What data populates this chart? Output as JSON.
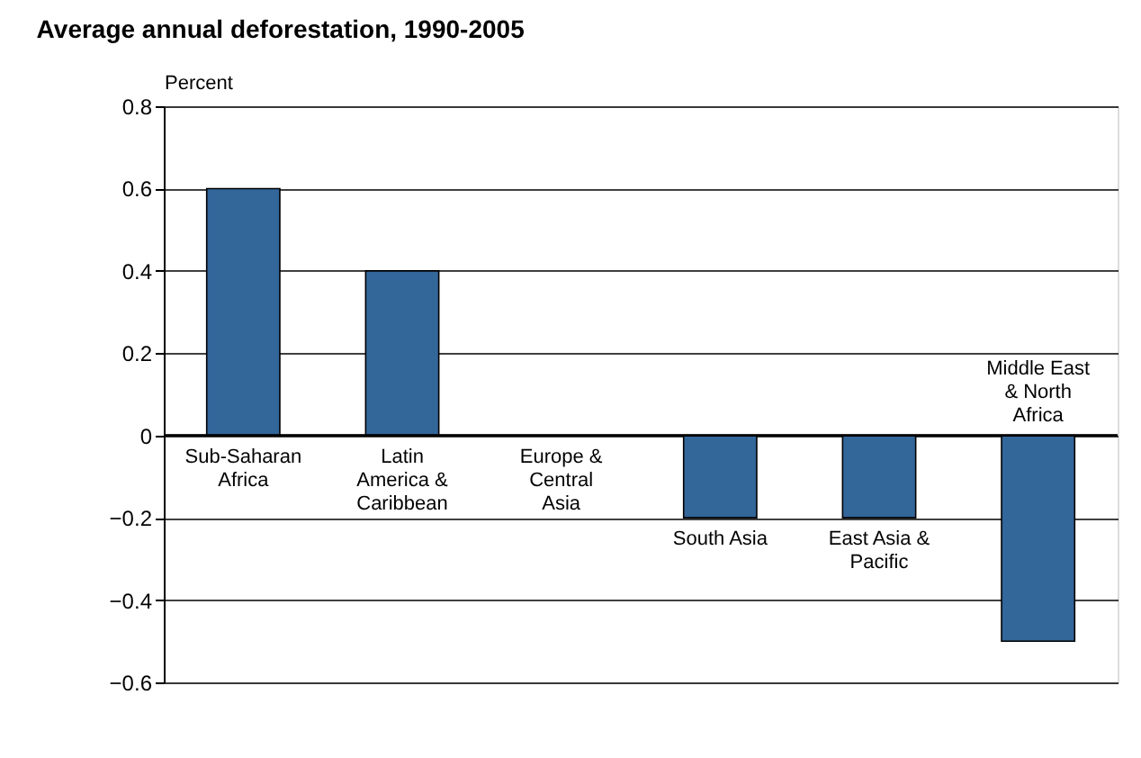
{
  "chart_data": {
    "type": "bar",
    "title": "Average annual deforestation, 1990-2005",
    "ylabel": "Percent",
    "categories": [
      "Sub-Saharan Africa",
      "Latin America & Caribbean",
      "Europe & Central Asia",
      "South Asia",
      "East Asia & Pacific",
      "Middle East & North Africa"
    ],
    "values": [
      0.6,
      0.4,
      0,
      -0.2,
      -0.2,
      -0.5
    ],
    "color": "#336699",
    "ylim": [
      -0.6,
      0.8
    ],
    "yticks": [
      -0.6,
      -0.4,
      -0.2,
      0,
      0.2,
      0.4,
      0.6,
      0.8
    ],
    "grid": "y"
  }
}
